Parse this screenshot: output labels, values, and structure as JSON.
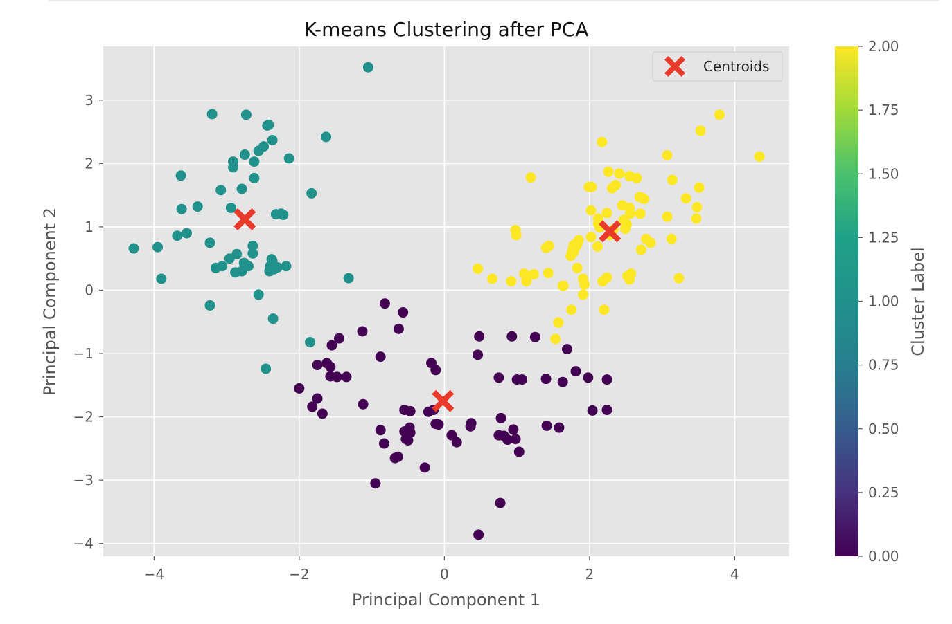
{
  "chart_data": {
    "type": "scatter",
    "title": "K-means Clustering after PCA",
    "xlabel": "Principal Component 1",
    "ylabel": "Principal Component 2",
    "xlim": [
      -4.7,
      4.75
    ],
    "ylim": [
      -4.2,
      3.85
    ],
    "xticks": [
      -4,
      -2,
      0,
      2,
      4
    ],
    "xtick_labels": [
      "−4",
      "−2",
      "0",
      "2",
      "4"
    ],
    "yticks": [
      -4,
      -3,
      -2,
      -1,
      0,
      1,
      2,
      3
    ],
    "ytick_labels": [
      "−4",
      "−3",
      "−2",
      "−1",
      "0",
      "1",
      "2",
      "3"
    ],
    "grid": true,
    "legend": {
      "position": "top-right",
      "entries": [
        "Centroids"
      ]
    },
    "colorbar": {
      "label": "Cluster Label",
      "range": [
        0,
        2
      ],
      "ticks": [
        0,
        0.25,
        0.5,
        0.75,
        1,
        1.25,
        1.5,
        1.75,
        2
      ],
      "tick_labels": [
        "0.00",
        "0.25",
        "0.50",
        "0.75",
        "1.00",
        "1.25",
        "1.50",
        "1.75",
        "2.00"
      ],
      "colormap": "viridis"
    },
    "colors": {
      "cluster_0": "#440154",
      "cluster_1": "#21918c",
      "cluster_2": "#fde725",
      "centroid": "#e8392b",
      "axes_background": "#e5e5e5",
      "grid": "#ffffff"
    },
    "series": [
      {
        "cluster": 0,
        "x": [
          -2.0,
          -1.55,
          -1.62,
          -1.45,
          -1.75,
          -1.57,
          -1.57,
          -1.13,
          -1.35,
          -1.48,
          -1.75,
          -1.82,
          -1.68,
          -1.12,
          -0.88,
          -0.82,
          -0.57,
          -0.63,
          -0.47,
          -0.55,
          -0.18,
          -0.12,
          -0.15,
          -0.22,
          -0.08,
          -0.55,
          -0.47,
          -0.53,
          -0.5,
          -0.48,
          -0.12,
          -0.88,
          -0.83,
          -0.68,
          -0.64,
          -0.27,
          -0.95,
          0.1,
          0.17,
          0.36,
          0.37,
          0.46,
          0.48,
          0.75,
          0.78,
          0.82,
          0.87,
          0.95,
          1.0,
          1.07,
          0.93,
          0.98,
          1.03,
          1.25,
          1.69,
          1.81,
          1.63,
          1.98,
          1.4,
          1.58,
          2.04,
          2.24,
          2.24,
          1.41,
          0.77,
          0.75,
          0.47
        ],
        "y": [
          -1.55,
          -0.87,
          -1.15,
          -0.76,
          -1.18,
          -1.21,
          -1.36,
          -0.65,
          -1.37,
          -1.37,
          -1.71,
          -1.84,
          -1.95,
          -1.8,
          -1.05,
          -0.21,
          -0.35,
          -0.61,
          -1.91,
          -1.89,
          -1.15,
          -1.26,
          -1.89,
          -1.92,
          -2.12,
          -2.23,
          -2.25,
          -2.35,
          -2.37,
          -2.17,
          -2.11,
          -2.21,
          -2.42,
          -2.65,
          -2.63,
          -2.8,
          -3.05,
          -2.29,
          -2.4,
          -2.15,
          -2.1,
          -1.02,
          -0.73,
          -1.38,
          -2.02,
          -2.3,
          -2.36,
          -2.2,
          -1.41,
          -1.41,
          -0.73,
          -2.35,
          -2.55,
          -0.74,
          -0.93,
          -1.28,
          -1.45,
          -1.38,
          -1.4,
          -2.17,
          -1.9,
          -1.41,
          -1.89,
          -2.14,
          -3.36,
          -2.29,
          -3.86
        ]
      },
      {
        "cluster": 1,
        "x": [
          -1.05,
          -4.28,
          -3.95,
          -3.9,
          -3.68,
          -3.55,
          -3.62,
          -3.63,
          -3.4,
          -3.2,
          -3.23,
          -3.06,
          -3.15,
          -2.96,
          -2.94,
          -3.08,
          -2.91,
          -2.91,
          -2.88,
          -2.86,
          -2.79,
          -2.79,
          -2.76,
          -2.75,
          -2.73,
          -2.7,
          -2.64,
          -2.64,
          -2.62,
          -2.62,
          -2.56,
          -2.56,
          -2.49,
          -2.44,
          -2.42,
          -2.37,
          -2.37,
          -2.35,
          -2.41,
          -2.4,
          -2.38,
          -2.36,
          -2.3,
          -2.25,
          -2.22,
          -2.18,
          -2.14,
          -2.32,
          -1.63,
          -1.83,
          -1.85,
          -1.32,
          -2.37,
          -2.46,
          -3.23
        ],
        "y": [
          3.52,
          0.66,
          0.68,
          0.18,
          0.86,
          0.9,
          1.28,
          1.81,
          1.32,
          2.78,
          0.75,
          0.38,
          0.35,
          0.5,
          1.3,
          1.58,
          1.94,
          2.03,
          0.28,
          0.57,
          1.6,
          0.3,
          0.43,
          2.14,
          2.77,
          0.38,
          0.58,
          0.7,
          1.77,
          2.03,
          -0.07,
          2.2,
          2.27,
          2.6,
          2.61,
          2.37,
          0.46,
          0.33,
          0.3,
          0.38,
          0.49,
          -0.45,
          0.36,
          1.21,
          1.19,
          0.38,
          2.08,
          1.2,
          2.42,
          1.53,
          -0.82,
          0.19,
          0.38,
          -1.24,
          -0.24
        ]
      },
      {
        "cluster": 2,
        "x": [
          3.79,
          4.34,
          3.53,
          3.07,
          3.14,
          3.51,
          3.33,
          3.48,
          3.47,
          3.07,
          3.13,
          3.23,
          2.84,
          2.78,
          2.72,
          2.75,
          2.7,
          2.65,
          2.69,
          2.56,
          2.55,
          2.51,
          2.49,
          2.47,
          2.45,
          2.55,
          2.41,
          2.36,
          2.31,
          2.26,
          2.24,
          2.17,
          2.12,
          2.12,
          2.11,
          2.03,
          2.02,
          1.99,
          1.91,
          1.93,
          1.83,
          1.78,
          1.76,
          1.78,
          1.63,
          1.44,
          1.4,
          1.43,
          1.23,
          1.13,
          1.1,
          0.98,
          0.99,
          0.92,
          0.66,
          0.46,
          1.19,
          1.64,
          1.75,
          1.91,
          2.2,
          2.18,
          2.24,
          2.55,
          2.52,
          2.57,
          2.71,
          2.14,
          1.53,
          1.57,
          1.74,
          1.82,
          1.84,
          1.85,
          2.02,
          2.28,
          2.33
        ],
        "y": [
          2.77,
          2.11,
          2.52,
          2.13,
          1.74,
          1.62,
          1.45,
          1.31,
          1.13,
          1.16,
          0.81,
          0.19,
          0.75,
          0.81,
          1.46,
          1.44,
          1.21,
          1.77,
          1.47,
          1.21,
          1.3,
          1.04,
          0.97,
          1.11,
          1.34,
          1.8,
          1.84,
          1.66,
          1.61,
          1.87,
          1.22,
          2.34,
          1.05,
          1.13,
          0.69,
          1.63,
          1.26,
          1.63,
          0.18,
          0.09,
          0.35,
          0.6,
          0.62,
          0.71,
          0.07,
          0.7,
          0.67,
          0.27,
          0.25,
          0.14,
          0.26,
          0.95,
          0.87,
          0.14,
          0.18,
          0.34,
          1.78,
          0.07,
          -0.31,
          -0.07,
          -0.31,
          0.14,
          0.2,
          0.17,
          0.22,
          0.26,
          0.64,
          0.99,
          -0.77,
          -0.51,
          0.54,
          0.7,
          0.76,
          0.79,
          0.84,
          0.87,
          0.96
        ]
      }
    ],
    "centroids": {
      "name": "Centroids",
      "x": [
        -2.75,
        -0.02,
        2.28
      ],
      "y": [
        1.12,
        -1.75,
        0.93
      ]
    }
  }
}
